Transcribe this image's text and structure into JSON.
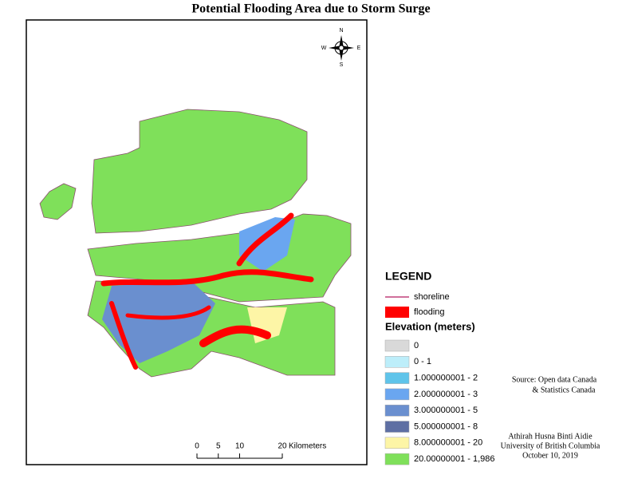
{
  "title": "Potential Flooding Area due to Storm Surge",
  "compass": {
    "n": "N",
    "e": "E",
    "s": "S",
    "w": "W"
  },
  "legend": {
    "title": "LEGEND",
    "items": [
      {
        "label": "shoreline",
        "color": "#c0407a"
      },
      {
        "label": "flooding",
        "color": "#ff0000"
      }
    ],
    "elevation_title": "Elevation (meters)",
    "classes": [
      {
        "label": "0",
        "color": "#d9d9d9"
      },
      {
        "label": "0 - 1",
        "color": "#bdeefa"
      },
      {
        "label": "1.000000001 - 2",
        "color": "#5fc4ea"
      },
      {
        "label": "2.000000001 - 3",
        "color": "#6aa6f0"
      },
      {
        "label": "3.000000001 - 5",
        "color": "#6a8fcf"
      },
      {
        "label": "5.000000001 - 8",
        "color": "#5e6fa3"
      },
      {
        "label": "8.000000001 - 20",
        "color": "#fdf5a6"
      },
      {
        "label": "20.00000001 - 1,986",
        "color": "#7fe05a"
      }
    ]
  },
  "scale_bar": {
    "ticks": [
      0,
      5,
      10,
      20
    ],
    "unit": "Kilometers"
  },
  "source": [
    "Source: Open data Canada",
    "& Statistics Canada"
  ],
  "credit": [
    "Athirah Husna Binti Aidie",
    "University of British Columbia",
    "October 10, 2019"
  ]
}
